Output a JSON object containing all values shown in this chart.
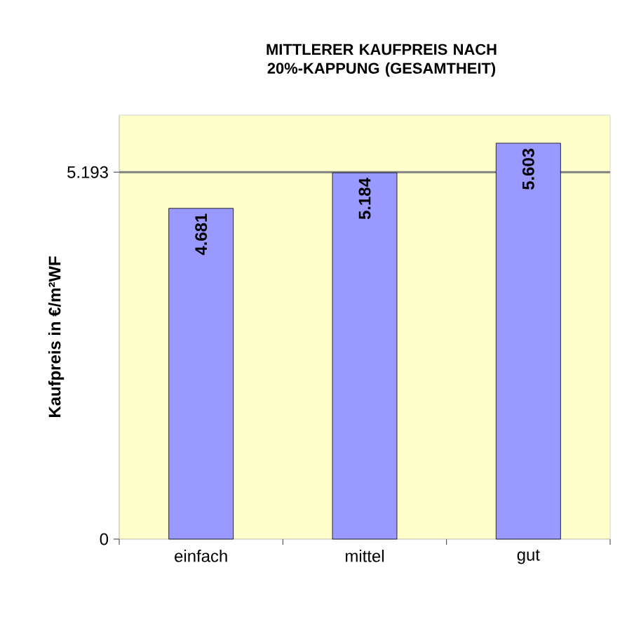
{
  "chart_data": {
    "type": "bar",
    "title": "MITTLERER KAUFPREIS NACH 20%-KAPPUNG (GESAMTHEIT)",
    "ylabel": "Kaufpreis in €/m²WF",
    "categories": [
      "einfach",
      "mittel",
      "gut"
    ],
    "values": [
      4.681,
      5.184,
      5.603
    ],
    "color": "#9999ff",
    "ylim": [
      0,
      6
    ],
    "yticks": [
      0,
      5.193
    ],
    "ref_lines": [
      {
        "axis": "y",
        "value": 5.193,
        "color": "#808080"
      }
    ],
    "data_labels": true
  }
}
